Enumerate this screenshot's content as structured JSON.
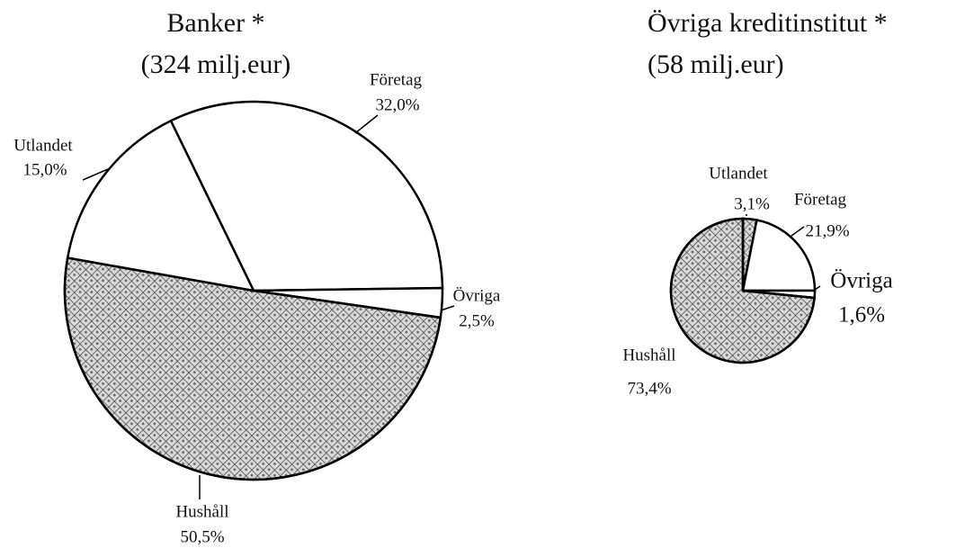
{
  "chart_data": [
    {
      "type": "pie",
      "title": "Banker *",
      "subtitle": "(324 milj.eur)",
      "categories": [
        "Företag",
        "Övriga",
        "Hushåll",
        "Utlandet"
      ],
      "values": [
        32.0,
        2.5,
        50.5,
        15.0
      ],
      "value_labels": [
        "32,0%",
        "2,5%",
        "50,5%",
        "15,0%"
      ],
      "colors": [
        "#ffffff",
        "#ffffff",
        "#d8d8d8",
        "#ffffff"
      ]
    },
    {
      "type": "pie",
      "title": "Övriga kreditinstitut *",
      "subtitle": "(58 milj.eur)",
      "categories": [
        "Utlandet",
        "Företag",
        "Övriga",
        "Hushåll"
      ],
      "values": [
        3.1,
        21.9,
        1.6,
        73.4
      ],
      "value_labels": [
        "3,1%",
        "21,9%",
        "1,6%",
        "73,4%"
      ],
      "colors": [
        "#d8d8d8",
        "#ffffff",
        "#ffffff",
        "#d8d8d8"
      ]
    }
  ]
}
